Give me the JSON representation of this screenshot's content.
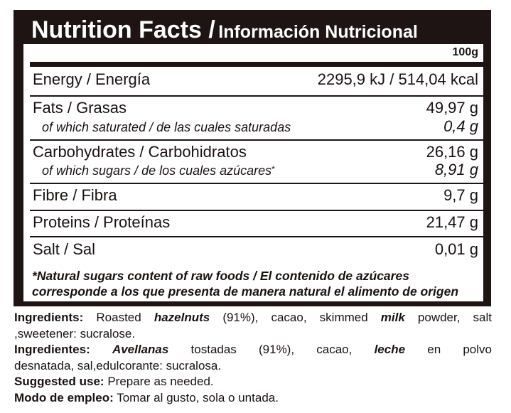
{
  "title": {
    "en": "Nutrition Facts /",
    "es": "Información Nutricional"
  },
  "column_header": "100g",
  "rows": {
    "energy": {
      "label": "Energy / Energía",
      "value": "2295,9 kJ / 514,04 kcal"
    },
    "fats": {
      "label": "Fats / Grasas",
      "value": "49,97 g"
    },
    "saturated": {
      "label": "of which saturated / de las cuales saturadas",
      "value": "0,4 g"
    },
    "carbs": {
      "label": "Carbohydrates / Carbohidratos",
      "value": "26,16 g"
    },
    "sugars": {
      "label": "of which sugars / de los cuales azúcares",
      "marker": "*",
      "value": "8,91 g"
    },
    "fibre": {
      "label": "Fibre / Fibra",
      "value": "9,7 g"
    },
    "proteins": {
      "label": "Proteins / Proteínas",
      "value": "21,47 g"
    },
    "salt": {
      "label": "Salt / Sal",
      "value": "0,01 g"
    }
  },
  "footnote": {
    "marker": "*",
    "line1": "Natural sugars content of raw foods / El contenido de azúcares",
    "line2": "corresponde a los que presenta de manera natural el alimento de origen"
  },
  "ingredients_en": {
    "heading": "Ingredients:",
    "t1": " Roasted ",
    "b1": "hazelnuts",
    "t2": " (91%), cacao, skimmed ",
    "b2": "milk",
    "t3": " powder, salt",
    "line2": ",sweetener: sucralose."
  },
  "ingredients_es": {
    "heading": "Ingredientes:",
    "sp0": " ",
    "b1": "Avellanas",
    "t1": " tostadas (91%), cacao, ",
    "b2": "leche",
    "t2": " en polvo",
    "line2": "desnatada, sal,edulcorante: sucralosa."
  },
  "suggested_use": {
    "heading": "Suggested use:",
    "text": " Prepare as needed."
  },
  "modo_empleo": {
    "heading": "Modo de empleo:",
    "text": " Tomar al gusto, sola o untada."
  }
}
